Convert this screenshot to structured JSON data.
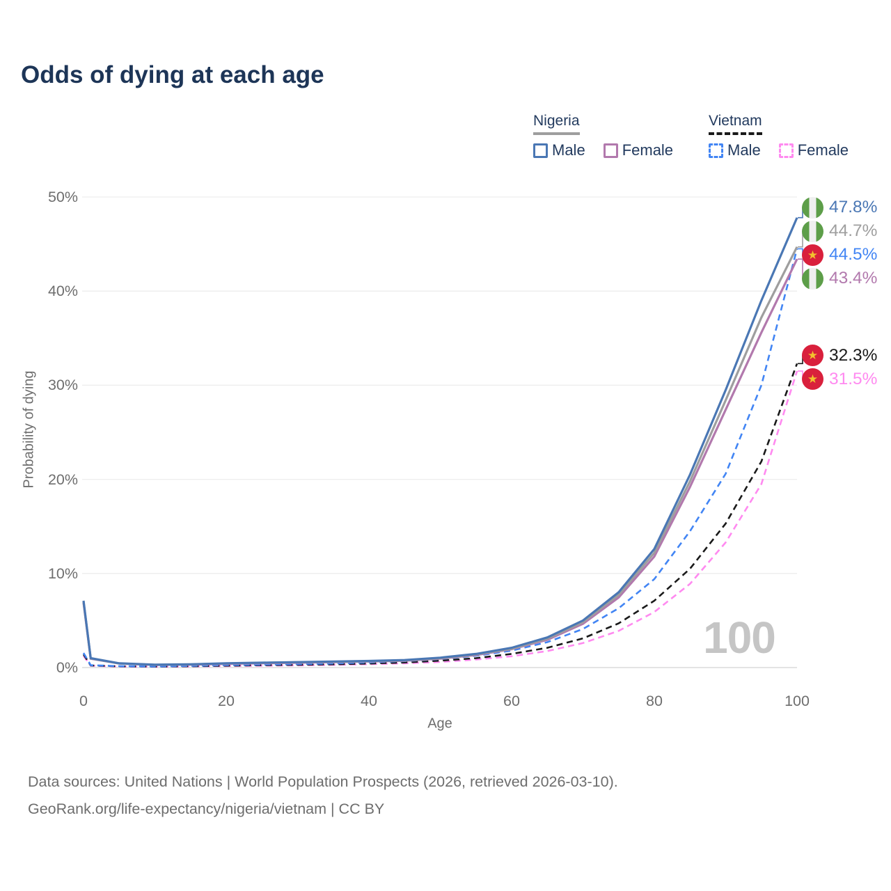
{
  "title": "Odds of dying at each age",
  "legend": {
    "groups": [
      {
        "label": "Nigeria",
        "underline_series": "Nigeria",
        "items": [
          {
            "label": "Male",
            "series": "Nigeria Male"
          },
          {
            "label": "Female",
            "series": "Nigeria Female"
          }
        ]
      },
      {
        "label": "Vietnam",
        "underline_series": "Vietnam",
        "items": [
          {
            "label": "Male",
            "series": "Vietnam Male"
          },
          {
            "label": "Female",
            "series": "Vietnam Female"
          }
        ]
      }
    ]
  },
  "chart_data": {
    "type": "line",
    "title": "Odds of dying at each age",
    "xlabel": "Age",
    "ylabel": "Probability of dying",
    "xlim": [
      0,
      100
    ],
    "ylim": [
      0,
      50
    ],
    "x_ticks": [
      0,
      20,
      40,
      60,
      80,
      100
    ],
    "y_ticks": [
      0,
      10,
      20,
      30,
      40,
      50
    ],
    "y_tick_suffix": "%",
    "grid": "horizontal",
    "legend_position": "top-right",
    "watermark": "100",
    "x": [
      0,
      1,
      5,
      10,
      15,
      20,
      25,
      30,
      35,
      40,
      45,
      50,
      55,
      60,
      65,
      70,
      75,
      80,
      85,
      90,
      95,
      100
    ],
    "series": [
      {
        "name": "Nigeria Male",
        "country": "Nigeria",
        "sex": "Male",
        "style": "solid",
        "color": "#4a77b4",
        "values": [
          7.1,
          1.0,
          0.45,
          0.3,
          0.35,
          0.45,
          0.52,
          0.58,
          0.64,
          0.7,
          0.8,
          1.05,
          1.45,
          2.1,
          3.2,
          5.0,
          8.0,
          12.6,
          20.5,
          29.5,
          39.0,
          47.8
        ]
      },
      {
        "name": "Nigeria",
        "country": "Nigeria",
        "sex": "Both sexes",
        "style": "solid",
        "color": "#9e9e9e",
        "values": [
          7.0,
          0.97,
          0.44,
          0.29,
          0.33,
          0.43,
          0.5,
          0.56,
          0.61,
          0.67,
          0.77,
          1.0,
          1.4,
          2.0,
          3.07,
          4.82,
          7.73,
          12.2,
          19.8,
          28.4,
          37.2,
          44.7
        ]
      },
      {
        "name": "Nigeria Female",
        "country": "Nigeria",
        "sex": "Female",
        "style": "solid",
        "color": "#b279ad",
        "values": [
          6.9,
          0.94,
          0.43,
          0.28,
          0.31,
          0.4,
          0.46,
          0.52,
          0.58,
          0.64,
          0.73,
          0.95,
          1.33,
          1.95,
          2.95,
          4.65,
          7.45,
          11.8,
          19.2,
          27.4,
          35.6,
          43.4
        ]
      },
      {
        "name": "Vietnam Male",
        "country": "Vietnam",
        "sex": "Male",
        "style": "dashed",
        "color": "#4285f4",
        "values": [
          1.55,
          0.25,
          0.15,
          0.12,
          0.18,
          0.26,
          0.31,
          0.36,
          0.44,
          0.54,
          0.68,
          0.9,
          1.25,
          1.8,
          2.7,
          4.1,
          6.3,
          9.4,
          14.5,
          20.6,
          30.0,
          44.5
        ]
      },
      {
        "name": "Vietnam",
        "country": "Vietnam",
        "sex": "Both sexes",
        "style": "dashed",
        "color": "#1a1a1a",
        "values": [
          1.4,
          0.22,
          0.13,
          0.1,
          0.14,
          0.2,
          0.25,
          0.29,
          0.35,
          0.43,
          0.54,
          0.73,
          1.0,
          1.45,
          2.1,
          3.1,
          4.7,
          7.1,
          10.5,
          15.3,
          21.9,
          32.3
        ]
      },
      {
        "name": "Vietnam Female",
        "country": "Vietnam",
        "sex": "Female",
        "style": "dashed",
        "color": "#ff8af0",
        "values": [
          1.25,
          0.2,
          0.11,
          0.09,
          0.12,
          0.16,
          0.2,
          0.24,
          0.29,
          0.36,
          0.45,
          0.6,
          0.85,
          1.2,
          1.75,
          2.6,
          3.9,
          5.9,
          8.9,
          13.3,
          19.5,
          31.5
        ]
      }
    ]
  },
  "annotations": [
    {
      "value": "47.8%",
      "series": "Nigeria Male",
      "flag": "nigeria",
      "color": "#4a77b4"
    },
    {
      "value": "44.7%",
      "series": "Nigeria",
      "flag": "nigeria",
      "color": "#9e9e9e"
    },
    {
      "value": "44.5%",
      "series": "Vietnam Male",
      "flag": "vietnam",
      "color": "#4285f4"
    },
    {
      "value": "43.4%",
      "series": "Nigeria Female",
      "flag": "nigeria",
      "color": "#b279ad"
    },
    {
      "value": "32.3%",
      "series": "Vietnam",
      "flag": "vietnam",
      "color": "#1a1a1a"
    },
    {
      "value": "31.5%",
      "series": "Vietnam Female",
      "flag": "vietnam",
      "color": "#ff8af0"
    }
  ],
  "flags": {
    "nigeria": {
      "green": "#5d9e49",
      "white": "#efefef"
    },
    "vietnam": {
      "red": "#d9203c",
      "star": "#f2c12e",
      "star_glyph": "★"
    }
  },
  "footer": {
    "line1": "Data sources: United Nations | World Population Prospects (2026, retrieved 2026-03-10).",
    "line2": "GeoRank.org/life-expectancy/nigeria/vietnam | CC BY"
  },
  "colors": {
    "title": "#1d3557",
    "axis_text": "#6e6e6e",
    "grid": "#ededed",
    "zero_line": "#dcdcdc",
    "watermark": "#c5c5c5"
  }
}
